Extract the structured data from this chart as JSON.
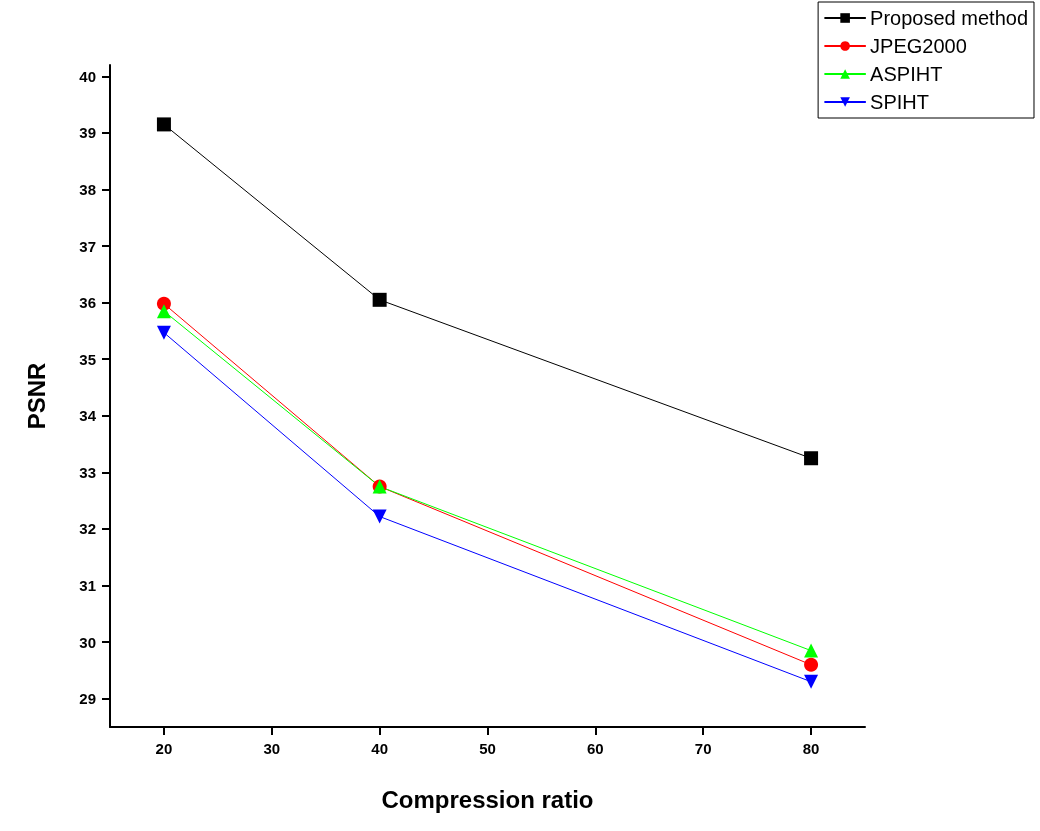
{
  "chart_data": {
    "type": "line",
    "xlabel": "Compression ratio",
    "ylabel": "PSNR",
    "x": [
      20,
      40,
      80
    ],
    "series": [
      {
        "name": "Proposed method",
        "color": "#000000",
        "marker": "square",
        "values": [
          39.15,
          36.05,
          33.25
        ]
      },
      {
        "name": "JPEG2000",
        "color": "#ff0000",
        "marker": "circle",
        "values": [
          35.98,
          32.75,
          29.6
        ]
      },
      {
        "name": "ASPIHT",
        "color": "#00ff00",
        "marker": "triangle",
        "values": [
          35.85,
          32.75,
          29.85
        ]
      },
      {
        "name": "SPIHT",
        "color": "#0000ff",
        "marker": "triangle-down",
        "values": [
          35.47,
          32.22,
          29.3
        ]
      }
    ],
    "xlim": [
      15,
      85
    ],
    "xticks": [
      20,
      30,
      40,
      50,
      60,
      70,
      80
    ],
    "ylim": [
      28.5,
      40.2
    ],
    "yticks": [
      29,
      30,
      31,
      32,
      33,
      34,
      35,
      36,
      37,
      38,
      39,
      40
    ],
    "grid": false,
    "legend": "top right",
    "line_style": "solid"
  }
}
